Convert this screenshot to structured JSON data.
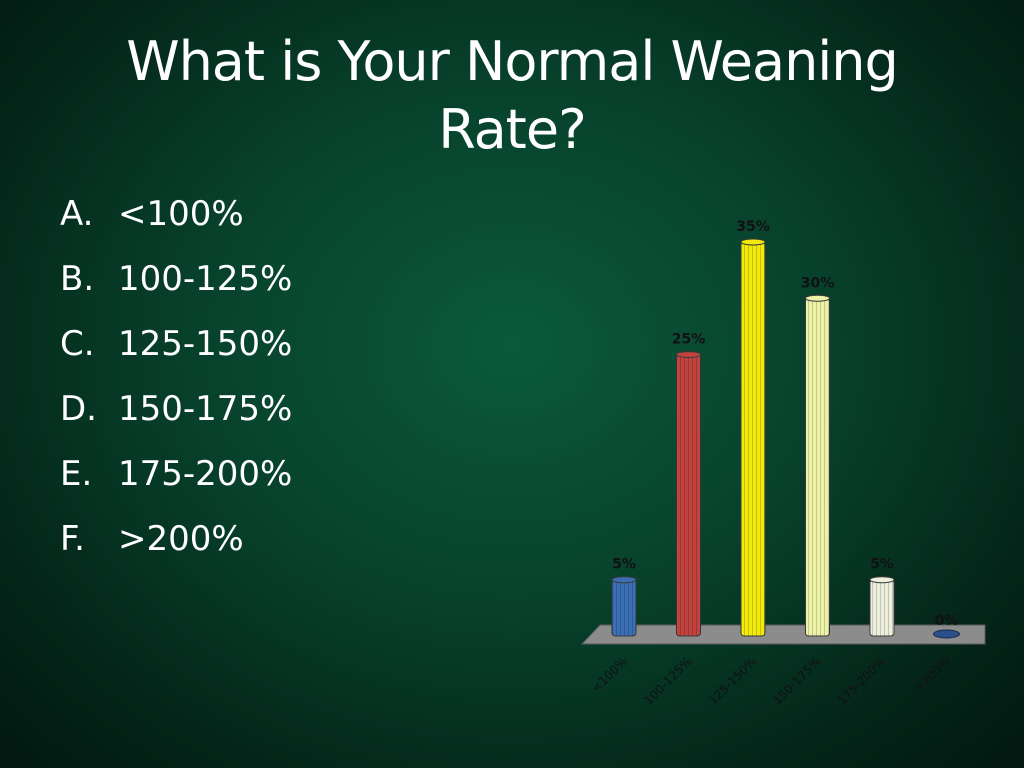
{
  "slide": {
    "title_line1": "What is Your Normal Weaning",
    "title_line2": "Rate?"
  },
  "options": [
    {
      "letter": "A.",
      "text": "<100%"
    },
    {
      "letter": "B.",
      "text": "100-125%"
    },
    {
      "letter": "C.",
      "text": "125-150%"
    },
    {
      "letter": "D.",
      "text": "150-175%"
    },
    {
      "letter": "E.",
      "text": "175-200%"
    },
    {
      "letter": "F.",
      "text": ">200%"
    }
  ],
  "chart_data": {
    "type": "bar",
    "title": "",
    "xlabel": "",
    "ylabel": "",
    "categories": [
      "<100%",
      "100-125%",
      "125-150%",
      "150-175%",
      "175-200%",
      ">200%"
    ],
    "values": [
      5,
      25,
      35,
      30,
      5,
      0
    ],
    "value_labels": [
      "5%",
      "25%",
      "35%",
      "30%",
      "5%",
      "0%"
    ],
    "colors": [
      "#3a6fb5",
      "#c0433f",
      "#f2ea0a",
      "#eef2a8",
      "#eeeedd",
      "#2a4f8a"
    ],
    "ylim": [
      0,
      35
    ],
    "grid": false,
    "legend": "none"
  }
}
